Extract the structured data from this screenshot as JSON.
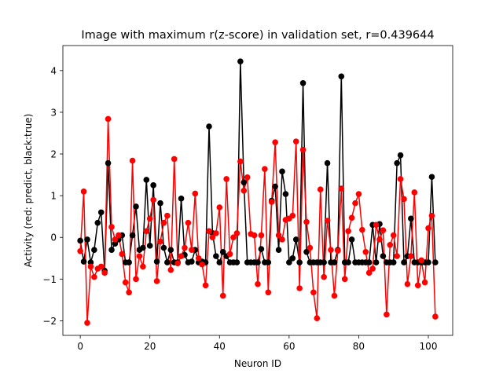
{
  "chart_data": {
    "type": "line",
    "title": "Image with maximum r(z-score) in validation set, r=0.439644",
    "xlabel": "Neuron ID",
    "ylabel": "Activity (red: predict, black:true)",
    "xlim": [
      -5,
      107
    ],
    "ylim": [
      -2.35,
      4.6
    ],
    "xticks": [
      0,
      20,
      40,
      60,
      80,
      100
    ],
    "yticks": [
      -2,
      -1,
      0,
      1,
      2,
      3,
      4
    ],
    "grid": false,
    "series": [
      {
        "name": "true",
        "color": "#000000",
        "values": [
          -0.08,
          -0.58,
          -0.05,
          -0.6,
          -0.3,
          0.35,
          0.6,
          -0.8,
          1.78,
          -0.3,
          -0.15,
          -0.05,
          0.05,
          -0.6,
          -0.6,
          0.05,
          0.74,
          -0.3,
          -0.25,
          1.38,
          -0.2,
          1.25,
          -0.58,
          0.82,
          -0.25,
          -0.6,
          -0.3,
          -0.6,
          -0.6,
          0.93,
          -0.42,
          -0.6,
          -0.58,
          -0.3,
          -0.6,
          -0.58,
          -0.6,
          2.66,
          0.1,
          -0.45,
          -0.6,
          -0.35,
          -0.45,
          -0.6,
          -0.6,
          -0.6,
          4.22,
          1.32,
          -0.6,
          -0.6,
          -0.6,
          -0.6,
          -0.28,
          -0.6,
          -0.6,
          0.88,
          1.22,
          -0.3,
          1.58,
          1.04,
          -0.6,
          -0.5,
          -0.05,
          -0.6,
          3.7,
          -0.35,
          -0.6,
          -0.6,
          -0.6,
          -0.6,
          -0.6,
          1.78,
          -0.6,
          -0.6,
          -0.3,
          3.86,
          -0.6,
          -0.6,
          -0.05,
          -0.6,
          -0.6,
          -0.6,
          -0.6,
          -0.6,
          0.3,
          -0.6,
          0.32,
          -0.45,
          -0.6,
          -0.6,
          -0.6,
          1.78,
          1.97,
          -0.6,
          -0.45,
          0.45,
          -0.6,
          -0.6,
          -0.6,
          -0.6,
          -0.6,
          1.45,
          -0.6
        ]
      },
      {
        "name": "predict",
        "color": "#ff0000",
        "values": [
          -0.33,
          1.1,
          -2.05,
          -0.7,
          -0.95,
          -0.75,
          -0.7,
          -0.85,
          2.84,
          0.25,
          -0.05,
          0.05,
          -0.4,
          -1.08,
          -1.32,
          1.84,
          -1.0,
          -0.45,
          -0.7,
          0.15,
          0.45,
          0.9,
          -1.05,
          -0.1,
          0.35,
          0.52,
          -0.78,
          1.88,
          -0.62,
          -0.45,
          -0.25,
          0.35,
          -0.3,
          1.05,
          -0.5,
          -0.65,
          -1.15,
          0.15,
          0.0,
          0.1,
          0.72,
          -1.4,
          1.4,
          -0.4,
          0.0,
          0.1,
          1.82,
          1.12,
          1.44,
          0.08,
          0.05,
          -1.12,
          0.05,
          1.64,
          -1.32,
          0.85,
          2.28,
          0.05,
          -0.05,
          0.42,
          0.45,
          0.52,
          2.3,
          -1.22,
          2.1,
          0.37,
          -0.25,
          -1.32,
          -1.94,
          1.15,
          -0.95,
          0.4,
          -0.3,
          -1.4,
          -0.32,
          1.17,
          -1.0,
          0.15,
          0.47,
          0.82,
          1.04,
          0.18,
          -0.35,
          -0.85,
          -0.75,
          0.3,
          -0.05,
          0.17,
          -1.85,
          -0.18,
          0.05,
          -0.45,
          1.4,
          0.92,
          -1.12,
          -0.45,
          1.08,
          -1.15,
          -0.55,
          -1.08,
          0.22,
          0.52,
          -1.9
        ]
      }
    ]
  }
}
